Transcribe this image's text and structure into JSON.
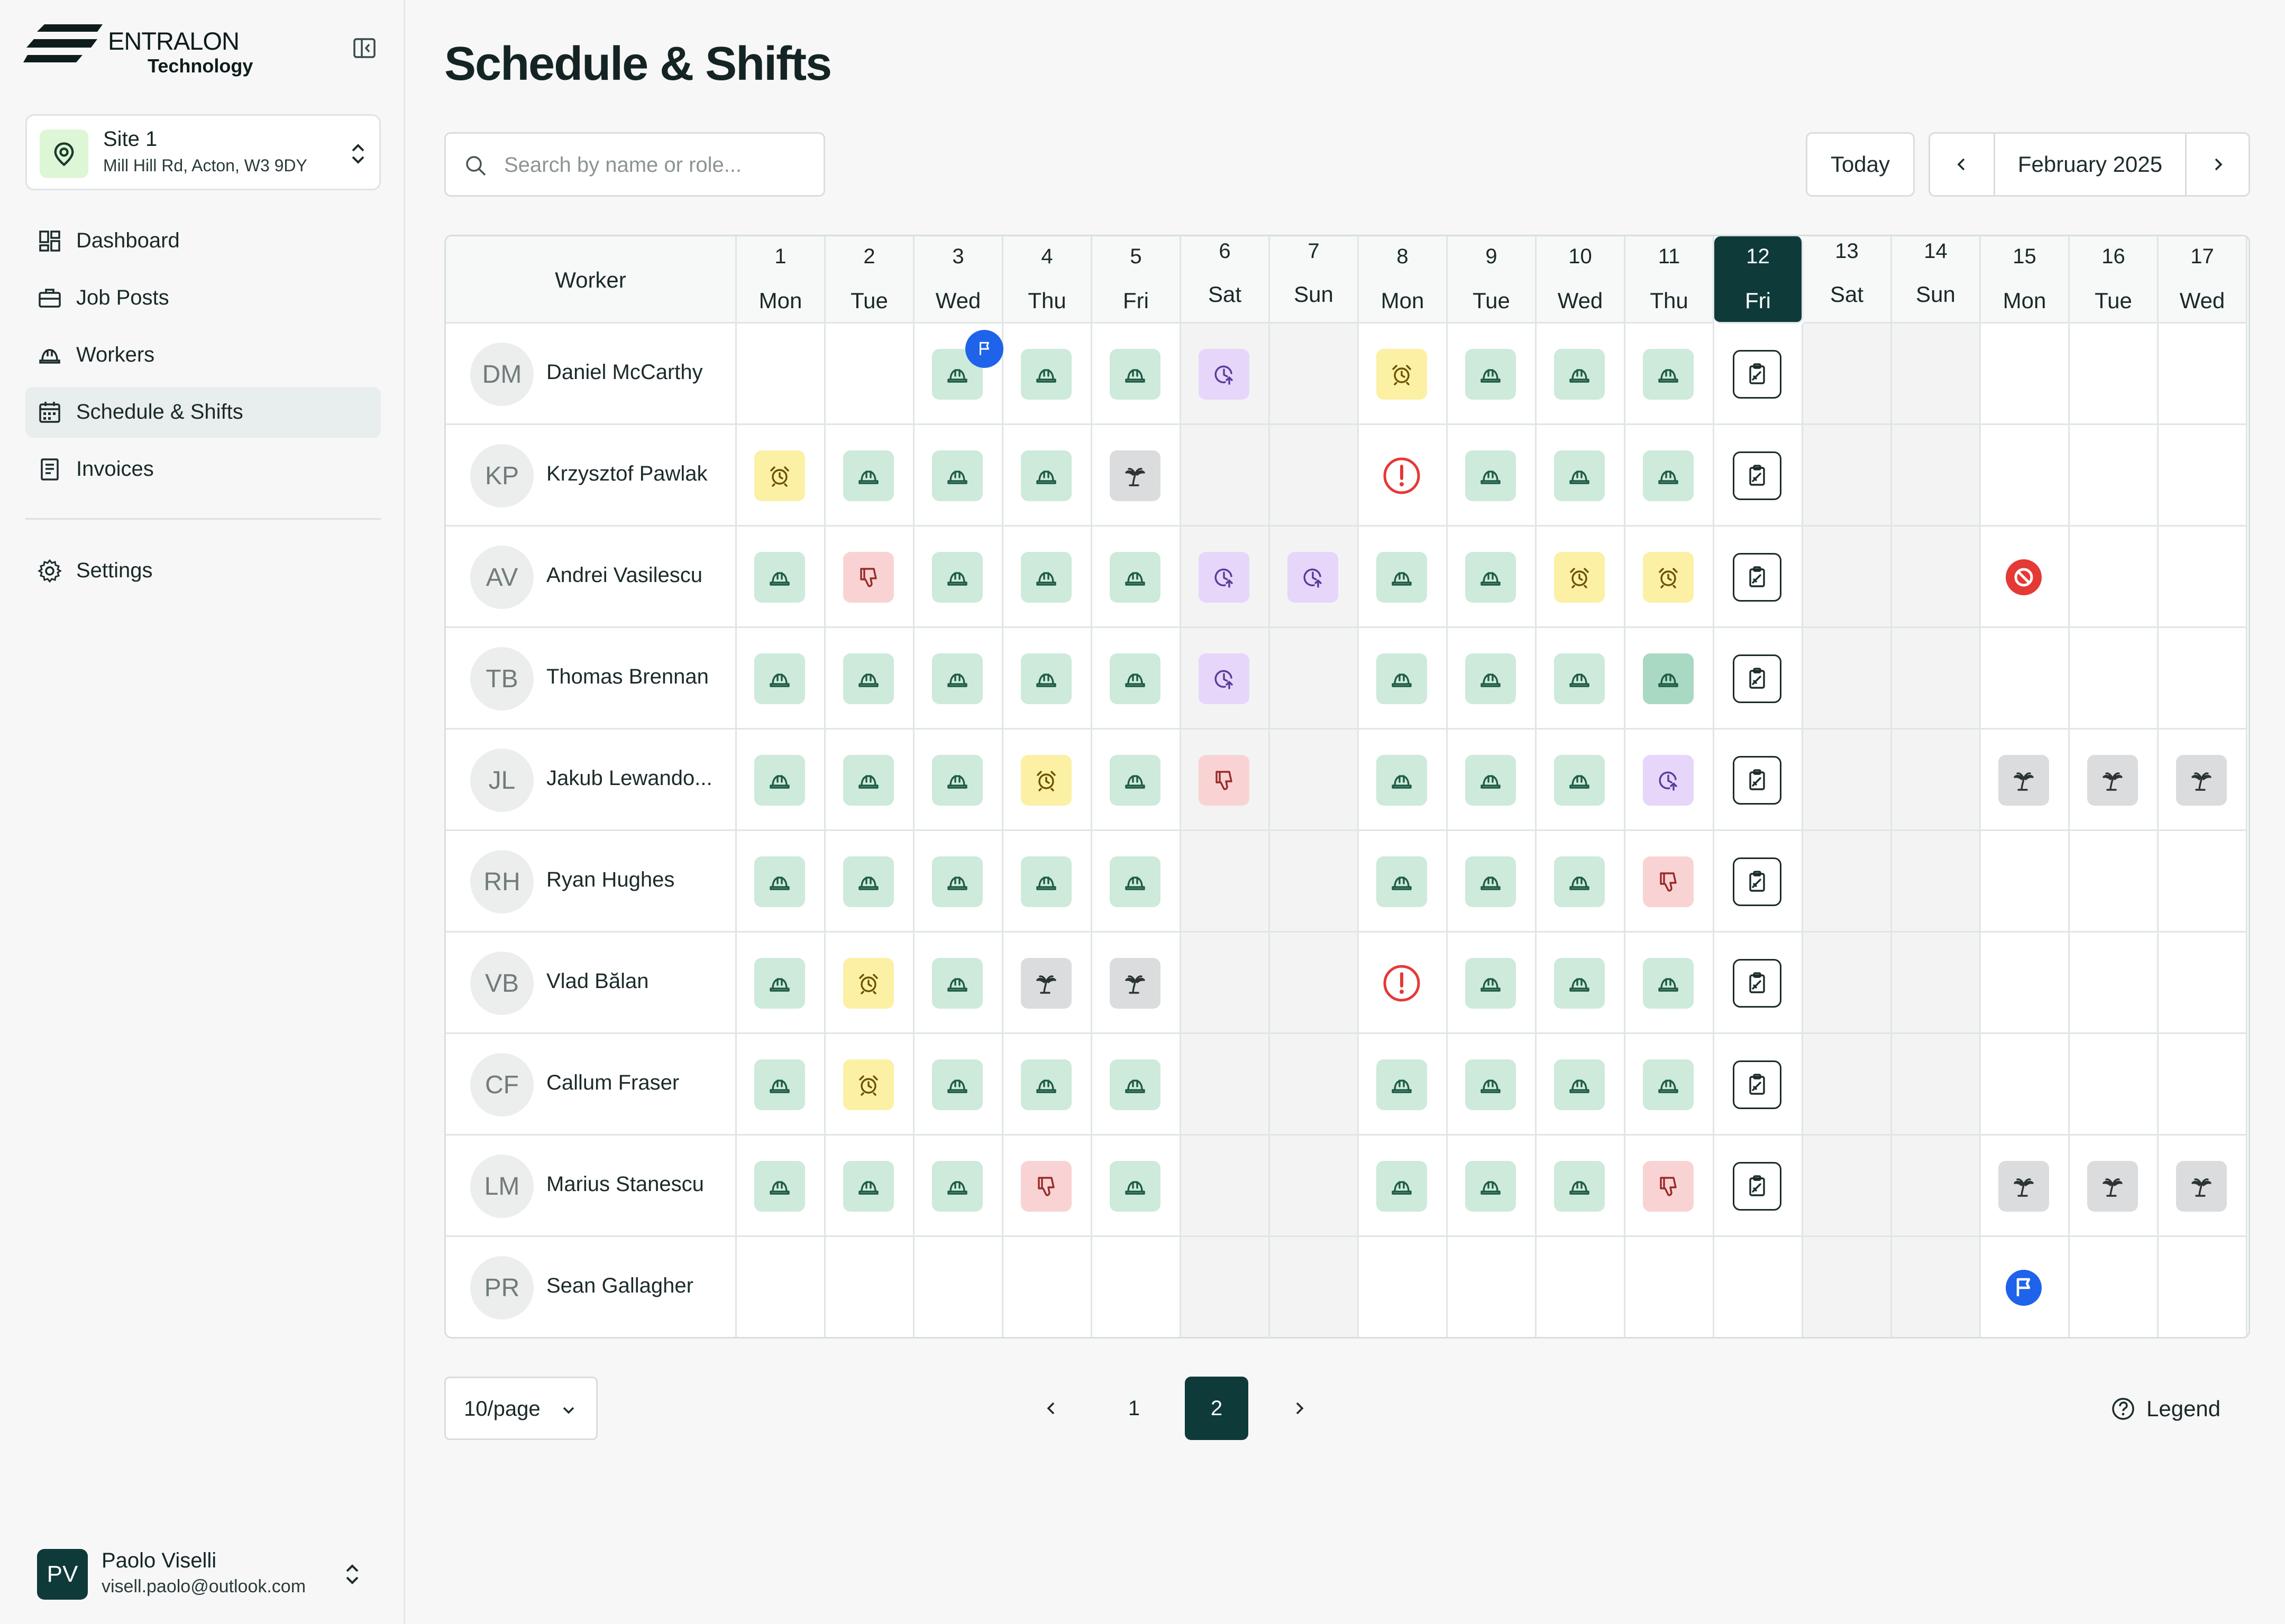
{
  "brand": {
    "name": "ENTRALON",
    "sub": "Technology"
  },
  "site": {
    "name": "Site 1",
    "address": "Mill Hill Rd, Acton, W3 9DY"
  },
  "nav": [
    {
      "label": "Dashboard",
      "icon": "dashboard-icon",
      "active": false
    },
    {
      "label": "Job Posts",
      "icon": "briefcase-icon",
      "active": false
    },
    {
      "label": "Workers",
      "icon": "hardhat-icon",
      "active": false
    },
    {
      "label": "Schedule & Shifts",
      "icon": "calendar-icon",
      "active": true
    },
    {
      "label": "Invoices",
      "icon": "invoice-icon",
      "active": false
    }
  ],
  "settings": {
    "label": "Settings"
  },
  "user": {
    "initials": "PV",
    "name": "Paolo Viselli",
    "email": "visell.paolo@outlook.com"
  },
  "page": {
    "title": "Schedule & Shifts"
  },
  "search": {
    "placeholder": "Search by name or role..."
  },
  "toolbar": {
    "today": "Today",
    "month": "February 2025"
  },
  "grid": {
    "worker_header": "Worker",
    "today_index": 11,
    "days": [
      {
        "n": "1",
        "d": "Mon"
      },
      {
        "n": "2",
        "d": "Tue"
      },
      {
        "n": "3",
        "d": "Wed"
      },
      {
        "n": "4",
        "d": "Thu"
      },
      {
        "n": "5",
        "d": "Fri"
      },
      {
        "n": "6",
        "d": "Sat",
        "w": true
      },
      {
        "n": "7",
        "d": "Sun",
        "w": true
      },
      {
        "n": "8",
        "d": "Mon"
      },
      {
        "n": "9",
        "d": "Tue"
      },
      {
        "n": "10",
        "d": "Wed"
      },
      {
        "n": "11",
        "d": "Thu"
      },
      {
        "n": "12",
        "d": "Fri"
      },
      {
        "n": "13",
        "d": "Sat",
        "w": true
      },
      {
        "n": "14",
        "d": "Sun",
        "w": true
      },
      {
        "n": "15",
        "d": "Mon"
      },
      {
        "n": "16",
        "d": "Tue"
      },
      {
        "n": "17",
        "d": "Wed"
      }
    ],
    "workers": [
      {
        "initials": "DM",
        "name": "Daniel McCarthy",
        "cells": [
          "",
          "",
          "work+flag",
          "work",
          "work",
          "ot",
          "",
          "late",
          "work",
          "work",
          "work",
          "sheet",
          "",
          "",
          "",
          "",
          ""
        ]
      },
      {
        "initials": "KP",
        "name": "Krzysztof Pawlak",
        "cells": [
          "late",
          "work",
          "work",
          "work",
          "hol",
          "",
          "",
          "alert",
          "work",
          "work",
          "work",
          "sheet",
          "",
          "",
          "",
          "",
          ""
        ]
      },
      {
        "initials": "AV",
        "name": "Andrei Vasilescu",
        "cells": [
          "work",
          "neg",
          "work",
          "work",
          "work",
          "ot",
          "ot",
          "work",
          "work",
          "late",
          "late",
          "sheet",
          "",
          "",
          "ban",
          "",
          ""
        ]
      },
      {
        "initials": "TB",
        "name": "Thomas Brennan",
        "cells": [
          "work",
          "work",
          "work",
          "work",
          "work",
          "ot",
          "",
          "work",
          "work",
          "work",
          "workd",
          "sheet",
          "",
          "",
          "",
          "",
          ""
        ]
      },
      {
        "initials": "JL",
        "name": "Jakub Lewando...",
        "cells": [
          "work",
          "work",
          "work",
          "late",
          "work",
          "neg",
          "",
          "work",
          "work",
          "work",
          "ot",
          "sheet",
          "",
          "",
          "hol",
          "hol",
          "hol"
        ]
      },
      {
        "initials": "RH",
        "name": "Ryan Hughes",
        "cells": [
          "work",
          "work",
          "work",
          "work",
          "work",
          "",
          "",
          "work",
          "work",
          "work",
          "neg",
          "sheet",
          "",
          "",
          "",
          "",
          ""
        ]
      },
      {
        "initials": "VB",
        "name": "Vlad Bălan",
        "cells": [
          "work",
          "late",
          "work",
          "hol",
          "hol",
          "",
          "",
          "alert",
          "work",
          "work",
          "work",
          "sheet",
          "",
          "",
          "",
          "",
          ""
        ]
      },
      {
        "initials": "CF",
        "name": "Callum Fraser",
        "cells": [
          "work",
          "late",
          "work",
          "work",
          "work",
          "",
          "",
          "work",
          "work",
          "work",
          "work",
          "sheet",
          "",
          "",
          "",
          "",
          ""
        ]
      },
      {
        "initials": "LM",
        "name": "Marius Stanescu",
        "cells": [
          "work",
          "work",
          "work",
          "neg",
          "work",
          "",
          "",
          "work",
          "work",
          "work",
          "neg",
          "sheet",
          "",
          "",
          "hol",
          "hol",
          "hol"
        ]
      },
      {
        "initials": "PR",
        "name": "Sean Gallagher",
        "cells": [
          "",
          "",
          "",
          "",
          "",
          "",
          "",
          "",
          "",
          "",
          "",
          "",
          "",
          "",
          "flag",
          "",
          ""
        ]
      }
    ]
  },
  "pagination": {
    "per_page": "10/page",
    "pages": [
      "1",
      "2"
    ],
    "current": "2"
  },
  "legend": {
    "label": "Legend"
  },
  "colors": {
    "accent": "#0f3a3a",
    "work": "#cdeadb",
    "late": "#fbf0a4",
    "overtime": "#e6d6fa",
    "negative": "#f9d3d3",
    "holiday": "#dadcdd",
    "alert": "#e53935",
    "flag": "#1e63ea"
  }
}
